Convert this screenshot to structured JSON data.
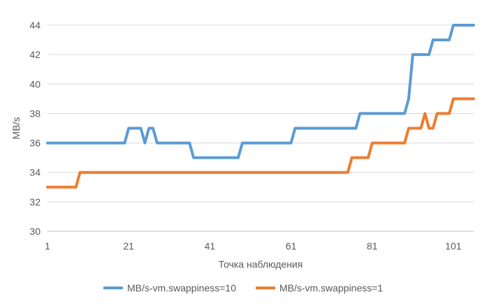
{
  "chart_data": {
    "type": "line",
    "title": "",
    "xlabel": "Точка наблюдения",
    "ylabel": "MB/s",
    "xlim": [
      1,
      106
    ],
    "ylim": [
      30,
      44
    ],
    "xticks": [
      1,
      21,
      41,
      61,
      81,
      101
    ],
    "yticks": [
      30,
      32,
      34,
      36,
      38,
      40,
      42,
      44
    ],
    "grid": "horizontal",
    "legend": "bottom",
    "series": [
      {
        "name": "MB/s-vm.swappiness=10",
        "color": "#5B9BD5",
        "points": [
          [
            1,
            36
          ],
          [
            20,
            36
          ],
          [
            21,
            37
          ],
          [
            24,
            37
          ],
          [
            25,
            36
          ],
          [
            26,
            37
          ],
          [
            27,
            37
          ],
          [
            28,
            36
          ],
          [
            36,
            36
          ],
          [
            37,
            35
          ],
          [
            48,
            35
          ],
          [
            49,
            36
          ],
          [
            61,
            36
          ],
          [
            62,
            37
          ],
          [
            77,
            37
          ],
          [
            78,
            38
          ],
          [
            89,
            38
          ],
          [
            90,
            39
          ],
          [
            91,
            42
          ],
          [
            95,
            42
          ],
          [
            96,
            43
          ],
          [
            100,
            43
          ],
          [
            101,
            44
          ],
          [
            106,
            44
          ]
        ]
      },
      {
        "name": "MB/s-vm.swappiness=1",
        "color": "#ED7D31",
        "points": [
          [
            1,
            33
          ],
          [
            8,
            33
          ],
          [
            9,
            34
          ],
          [
            75,
            34
          ],
          [
            76,
            35
          ],
          [
            80,
            35
          ],
          [
            81,
            36
          ],
          [
            89,
            36
          ],
          [
            90,
            37
          ],
          [
            93,
            37
          ],
          [
            94,
            38
          ],
          [
            95,
            37
          ],
          [
            96,
            37
          ],
          [
            97,
            38
          ],
          [
            100,
            38
          ],
          [
            101,
            39
          ],
          [
            106,
            39
          ]
        ]
      }
    ]
  }
}
